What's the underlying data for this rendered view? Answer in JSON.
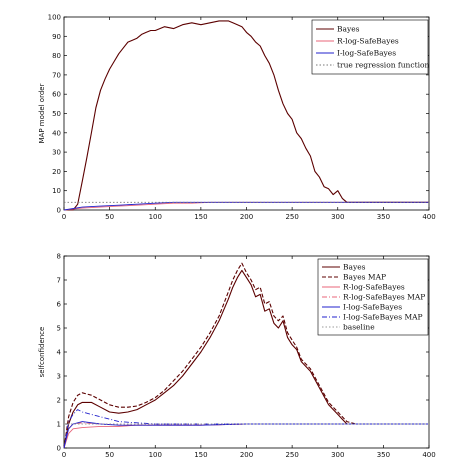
{
  "chart_data": [
    {
      "type": "line",
      "title": "",
      "xlabel": "",
      "ylabel": "MAP model order",
      "xlim": [
        0,
        400
      ],
      "ylim": [
        0,
        100
      ],
      "xticks": [
        "0",
        "50",
        "100",
        "150",
        "200",
        "250",
        "300",
        "350",
        "400"
      ],
      "yticks": [
        "0",
        "10",
        "20",
        "30",
        "40",
        "50",
        "60",
        "70",
        "80",
        "90",
        "100"
      ],
      "legend_position": "top-right",
      "grid": false,
      "series": [
        {
          "name": "Bayes",
          "color": "#5c0000",
          "dash": "solid",
          "x": [
            0,
            10,
            15,
            20,
            25,
            30,
            35,
            40,
            45,
            50,
            55,
            60,
            65,
            70,
            75,
            80,
            85,
            90,
            95,
            100,
            110,
            120,
            130,
            140,
            150,
            160,
            170,
            180,
            185,
            190,
            195,
            200,
            205,
            210,
            215,
            220,
            225,
            230,
            235,
            240,
            245,
            250,
            255,
            260,
            265,
            270,
            275,
            280,
            285,
            290,
            295,
            300,
            305,
            310,
            400
          ],
          "y": [
            0,
            0,
            3,
            15,
            27,
            40,
            53,
            62,
            68,
            73,
            77,
            81,
            84,
            87,
            88,
            89,
            91,
            92,
            93,
            93,
            95,
            94,
            96,
            97,
            96,
            97,
            98,
            98,
            97,
            96,
            95,
            92,
            90,
            87,
            85,
            80,
            76,
            70,
            62,
            55,
            50,
            47,
            40,
            37,
            32,
            28,
            20,
            17,
            12,
            11,
            8,
            10,
            6,
            4,
            4
          ]
        },
        {
          "name": "R-log-SafeBayes",
          "color": "#e8667a",
          "dash": "solid",
          "x": [
            0,
            20,
            40,
            60,
            80,
            100,
            120,
            140,
            160,
            180,
            200,
            250,
            300,
            400
          ],
          "y": [
            0,
            1,
            1.5,
            2,
            2.5,
            3,
            3.5,
            3.5,
            4,
            4,
            4,
            4,
            4,
            4
          ]
        },
        {
          "name": "I-log-SafeBayes",
          "color": "#2222cc",
          "dash": "solid",
          "x": [
            0,
            20,
            40,
            60,
            80,
            100,
            120,
            140,
            160,
            180,
            200,
            250,
            300,
            400
          ],
          "y": [
            0,
            1.5,
            2,
            2.5,
            3,
            3.5,
            4,
            4,
            4,
            4,
            4,
            4,
            4,
            4
          ]
        },
        {
          "name": "true regression function",
          "color": "#777777",
          "dash": "dotted",
          "x": [
            0,
            400
          ],
          "y": [
            4,
            4
          ]
        }
      ]
    },
    {
      "type": "line",
      "title": "",
      "xlabel": "",
      "ylabel": "selfconfidence",
      "xlim": [
        0,
        400
      ],
      "ylim": [
        0,
        8
      ],
      "xticks": [
        "0",
        "50",
        "100",
        "150",
        "200",
        "250",
        "300",
        "350",
        "400"
      ],
      "yticks": [
        "0",
        "1",
        "2",
        "3",
        "4",
        "5",
        "6",
        "7",
        "8"
      ],
      "legend_position": "top-right",
      "grid": false,
      "series": [
        {
          "name": "Bayes",
          "color": "#5c0000",
          "dash": "solid",
          "x": [
            0,
            5,
            10,
            15,
            20,
            30,
            40,
            50,
            60,
            70,
            80,
            90,
            100,
            110,
            120,
            130,
            140,
            150,
            160,
            170,
            180,
            185,
            190,
            195,
            200,
            205,
            210,
            215,
            220,
            225,
            230,
            235,
            240,
            245,
            250,
            255,
            260,
            270,
            280,
            290,
            300,
            305,
            310,
            320,
            400
          ],
          "y": [
            0,
            1.0,
            1.5,
            1.8,
            1.9,
            1.9,
            1.7,
            1.5,
            1.45,
            1.5,
            1.6,
            1.8,
            2.0,
            2.3,
            2.6,
            3.0,
            3.5,
            4.0,
            4.6,
            5.3,
            6.2,
            6.7,
            7.1,
            7.4,
            7.1,
            6.8,
            6.3,
            6.4,
            5.7,
            5.8,
            5.2,
            5.0,
            5.3,
            4.6,
            4.3,
            4.1,
            3.6,
            3.2,
            2.5,
            1.8,
            1.4,
            1.2,
            1.0,
            1.0,
            1.0
          ]
        },
        {
          "name": "Bayes MAP",
          "color": "#5c0000",
          "dash": "dashed",
          "x": [
            0,
            5,
            10,
            15,
            20,
            30,
            40,
            50,
            60,
            70,
            80,
            90,
            100,
            110,
            120,
            130,
            140,
            150,
            160,
            170,
            180,
            185,
            190,
            195,
            200,
            205,
            210,
            215,
            220,
            225,
            230,
            235,
            240,
            245,
            250,
            255,
            260,
            270,
            280,
            290,
            300,
            305,
            310,
            320,
            400
          ],
          "y": [
            0,
            1.3,
            1.9,
            2.2,
            2.3,
            2.2,
            2.0,
            1.8,
            1.7,
            1.7,
            1.75,
            1.9,
            2.1,
            2.4,
            2.8,
            3.2,
            3.7,
            4.2,
            4.8,
            5.5,
            6.5,
            7.0,
            7.4,
            7.7,
            7.3,
            7.0,
            6.6,
            6.7,
            6.0,
            6.1,
            5.5,
            5.3,
            5.5,
            4.8,
            4.5,
            4.2,
            3.7,
            3.3,
            2.6,
            1.9,
            1.5,
            1.3,
            1.1,
            1.0,
            1.0
          ]
        },
        {
          "name": "R-log-SafeBayes",
          "color": "#e8667a",
          "dash": "solid",
          "x": [
            0,
            5,
            10,
            20,
            40,
            60,
            80,
            100,
            150,
            200,
            300,
            400
          ],
          "y": [
            0,
            0.6,
            0.8,
            0.85,
            0.9,
            0.9,
            0.95,
            0.95,
            0.95,
            1.0,
            1.0,
            1.0
          ]
        },
        {
          "name": "R-log-SafeBayes MAP",
          "color": "#e8667a",
          "dash": "dashdot",
          "x": [
            0,
            5,
            10,
            20,
            40,
            60,
            80,
            100,
            150,
            200,
            300,
            400
          ],
          "y": [
            0,
            0.8,
            1.0,
            1.05,
            1.0,
            0.95,
            0.95,
            0.95,
            0.95,
            1.0,
            1.0,
            1.0
          ]
        },
        {
          "name": "I-log-SafeBayes",
          "color": "#2222cc",
          "dash": "solid",
          "x": [
            0,
            5,
            10,
            20,
            40,
            60,
            80,
            100,
            150,
            200,
            300,
            400
          ],
          "y": [
            0,
            0.8,
            1.0,
            1.1,
            1.0,
            0.95,
            0.95,
            0.95,
            0.95,
            1.0,
            1.0,
            1.0
          ]
        },
        {
          "name": "I-log-SafeBayes MAP",
          "color": "#2222cc",
          "dash": "dashdot",
          "x": [
            0,
            5,
            10,
            15,
            20,
            30,
            40,
            50,
            60,
            80,
            100,
            150,
            200,
            300,
            400
          ],
          "y": [
            0,
            1.1,
            1.4,
            1.6,
            1.5,
            1.4,
            1.3,
            1.2,
            1.1,
            1.05,
            1.0,
            1.0,
            1.0,
            1.0,
            1.0
          ]
        },
        {
          "name": "baseline",
          "color": "#999999",
          "dash": "dotted",
          "x": [
            0,
            400
          ],
          "y": [
            1,
            1
          ]
        }
      ]
    }
  ]
}
